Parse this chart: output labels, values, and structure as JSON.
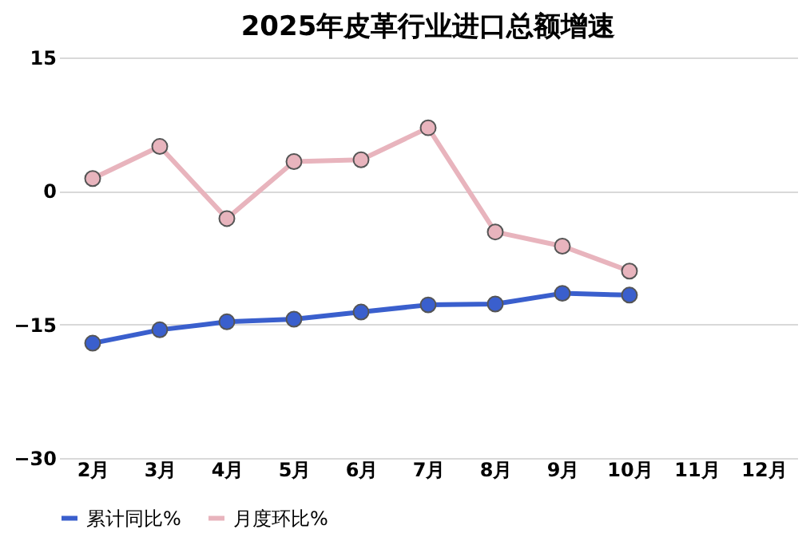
{
  "chart_data": {
    "type": "line",
    "title": "2025年皮革行业进口总额增速",
    "categories": [
      "2月",
      "3月",
      "4月",
      "5月",
      "6月",
      "7月",
      "8月",
      "9月",
      "10月",
      "11月",
      "12月"
    ],
    "series": [
      {
        "name": "累计同比%",
        "color": "#3a5fcd",
        "values": [
          -17.1,
          -15.6,
          -14.7,
          -14.4,
          -13.6,
          -12.8,
          -12.7,
          -11.5,
          -11.7,
          null,
          null
        ]
      },
      {
        "name": "月度环比%",
        "color": "#e8b4bd",
        "values": [
          1.4,
          5.0,
          -3.1,
          3.3,
          3.5,
          7.1,
          -4.6,
          -6.2,
          -9.0,
          null,
          null
        ]
      }
    ],
    "ylim": [
      -30,
      15
    ],
    "yticks": [
      -30,
      -15,
      0,
      15
    ],
    "grid": "y",
    "legend": "bottom",
    "marker": "circle",
    "line_style": "solid"
  }
}
